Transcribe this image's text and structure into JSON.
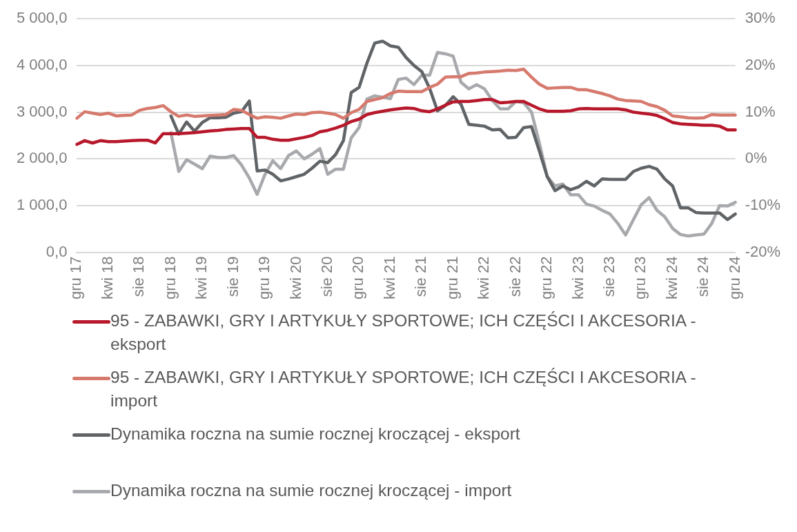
{
  "chart_data": {
    "type": "line",
    "categories": [
      "gru 17",
      null,
      null,
      null,
      "kwi 18",
      null,
      null,
      null,
      "sie 18",
      null,
      null,
      null,
      "gru 18",
      null,
      null,
      null,
      "kwi 19",
      null,
      null,
      null,
      "sie 19",
      null,
      null,
      null,
      "gru 19",
      null,
      null,
      null,
      "kwi 20",
      null,
      null,
      null,
      "sie 20",
      null,
      null,
      null,
      "gru 20",
      null,
      null,
      null,
      "kwi 21",
      null,
      null,
      null,
      "sie 21",
      null,
      null,
      null,
      "gru 21",
      null,
      null,
      null,
      "kwi 22",
      null,
      null,
      null,
      "sie 22",
      null,
      null,
      null,
      "gru 22",
      null,
      null,
      null,
      "kwi 23",
      null,
      null,
      null,
      "sie 23",
      null,
      null,
      null,
      "gru 23",
      null,
      null,
      null,
      "kwi 24",
      null,
      null,
      null,
      "sie 24",
      null,
      null,
      null,
      "gru 24"
    ],
    "series": [
      {
        "name": "95 - ZABAWKI, GRY I ARTYKUŁY SPORTOWE; ICH CZĘŚCI I AKCESORIA - eksport",
        "color": "#b8182b",
        "values": [
          2310,
          2390,
          2340,
          2390,
          2370,
          2370,
          2380,
          2390,
          2400,
          2400,
          2340,
          2540,
          2540,
          2540,
          2550,
          2560,
          2580,
          2600,
          2610,
          2630,
          2640,
          2650,
          2650,
          2460,
          2460,
          2420,
          2400,
          2400,
          2430,
          2460,
          2500,
          2580,
          2610,
          2660,
          2720,
          2800,
          2850,
          2950,
          2990,
          3020,
          3050,
          3070,
          3090,
          3080,
          3030,
          3010,
          3070,
          3150,
          3220,
          3230,
          3230,
          3250,
          3270,
          3270,
          3200,
          3210,
          3230,
          3230,
          3150,
          3070,
          3020,
          3020,
          3020,
          3030,
          3070,
          3080,
          3070,
          3070,
          3070,
          3070,
          3050,
          3000,
          2980,
          2960,
          2930,
          2860,
          2780,
          2750,
          2740,
          2730,
          2720,
          2720,
          2700,
          2620,
          2620
        ]
      },
      {
        "name": "95 - ZABAWKI, GRY I ARTYKUŁY SPORTOWE; ICH CZĘŚCI I AKCESORIA - import",
        "color": "#d77a6e",
        "values": [
          2870,
          3010,
          2980,
          2950,
          2980,
          2920,
          2930,
          2940,
          3040,
          3080,
          3100,
          3140,
          3010,
          2910,
          2940,
          2910,
          2920,
          2930,
          2940,
          2950,
          3060,
          3040,
          2950,
          2870,
          2900,
          2890,
          2870,
          2920,
          2960,
          2950,
          2990,
          3000,
          2980,
          2950,
          2870,
          2990,
          3060,
          3230,
          3270,
          3310,
          3400,
          3450,
          3440,
          3440,
          3440,
          3530,
          3600,
          3750,
          3760,
          3760,
          3830,
          3840,
          3860,
          3870,
          3880,
          3900,
          3890,
          3920,
          3750,
          3600,
          3510,
          3520,
          3530,
          3530,
          3480,
          3480,
          3440,
          3400,
          3350,
          3280,
          3250,
          3240,
          3230,
          3160,
          3120,
          3040,
          2920,
          2900,
          2880,
          2870,
          2880,
          2950,
          2940,
          2940,
          2940
        ]
      },
      {
        "name": "Dynamika roczna na sumie rocznej kroczącej - eksport",
        "color": "#606467",
        "axis": "y2",
        "values": [
          null,
          null,
          null,
          null,
          null,
          null,
          null,
          null,
          null,
          null,
          null,
          null,
          9.2,
          5.3,
          7.9,
          5.9,
          7.8,
          8.8,
          8.8,
          8.9,
          9.8,
          10.1,
          12.4,
          -2.6,
          -2.4,
          -3.3,
          -4.7,
          -4.3,
          -3.8,
          -3.3,
          -2.0,
          -0.5,
          -0.8,
          0.9,
          3.9,
          14.2,
          15.3,
          20.5,
          24.8,
          25.2,
          24.2,
          23.9,
          21.7,
          20.0,
          18.7,
          15.1,
          10.3,
          11.4,
          13.3,
          11.7,
          7.4,
          7.2,
          7.0,
          6.2,
          6.3,
          4.5,
          4.6,
          6.7,
          6.9,
          1.7,
          -3.8,
          -6.8,
          -5.8,
          -6.6,
          -6.0,
          -4.8,
          -5.8,
          -4.3,
          -4.4,
          -4.4,
          -4.4,
          -2.7,
          -2.0,
          -1.6,
          -2.2,
          -4.3,
          -5.8,
          -10.5,
          -10.5,
          -11.5,
          -11.6,
          -11.6,
          -11.6,
          -13.0,
          -11.8
        ]
      },
      {
        "name": "Dynamika roczna na sumie rocznej kroczącej - import",
        "color": "#a7a9ac",
        "axis": "y2",
        "values": [
          null,
          null,
          null,
          null,
          null,
          null,
          null,
          null,
          null,
          null,
          null,
          null,
          5.6,
          -2.7,
          -0.2,
          -1.1,
          -2.1,
          0.6,
          0.3,
          0.3,
          0.7,
          -1.3,
          -4.1,
          -7.6,
          -3.3,
          -0.4,
          -2.1,
          0.7,
          1.7,
          0.0,
          1.0,
          2.2,
          -3.3,
          -2.2,
          -2.2,
          4.5,
          6.7,
          12.8,
          13.5,
          13.2,
          12.9,
          17.0,
          17.3,
          15.9,
          17.9,
          17.9,
          22.8,
          22.5,
          22.0,
          16.4,
          15.0,
          15.9,
          15.0,
          12.5,
          10.7,
          10.7,
          12.3,
          12.0,
          10.0,
          3.4,
          -3.8,
          -5.8,
          -5.4,
          -7.7,
          -7.7,
          -9.7,
          -10.1,
          -11.0,
          -11.8,
          -13.8,
          -16.3,
          -13.0,
          -9.8,
          -8.3,
          -11.0,
          -12.4,
          -14.9,
          -16.2,
          -16.5,
          -16.3,
          -16.1,
          -13.8,
          -10.0,
          -10.1,
          -9.3
        ]
      }
    ],
    "ylim": [
      0,
      5000
    ],
    "yticks": [
      {
        "value": 0,
        "label": "0,0"
      },
      {
        "value": 1000,
        "label": "1 000,0"
      },
      {
        "value": 2000,
        "label": "2 000,0"
      },
      {
        "value": 3000,
        "label": "3 000,0"
      },
      {
        "value": 4000,
        "label": "4 000,0"
      },
      {
        "value": 5000,
        "label": "5 000,0"
      }
    ],
    "y2lim": [
      -20,
      30
    ],
    "y2ticks": [
      {
        "value": -20,
        "label": "-20%"
      },
      {
        "value": -10,
        "label": "-10%"
      },
      {
        "value": 0,
        "label": "0%"
      },
      {
        "value": 10,
        "label": "10%"
      },
      {
        "value": 20,
        "label": "20%"
      },
      {
        "value": 30,
        "label": "30%"
      }
    ],
    "grid": "y",
    "legend": "bottom",
    "marker": "none",
    "line_style": "solid"
  }
}
